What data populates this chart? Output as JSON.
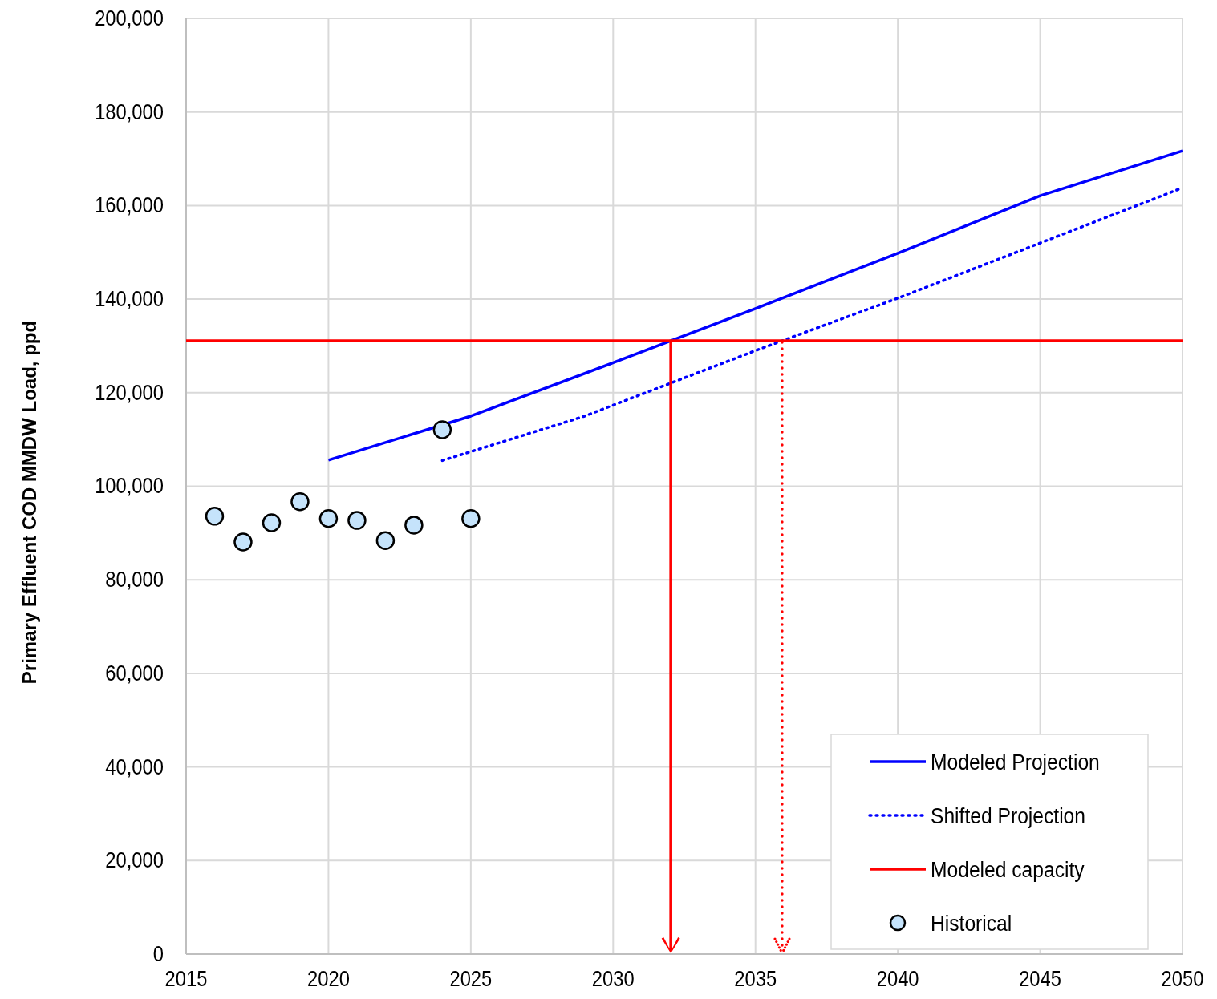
{
  "chart_data": {
    "type": "line",
    "ylabel": "Primary Effluent COD MMDW Load, ppd",
    "xlim": [
      2015,
      2050
    ],
    "xticks": [
      2015,
      2020,
      2025,
      2030,
      2035,
      2040,
      2045,
      2050
    ],
    "ylim": [
      0,
      200000
    ],
    "yticks": [
      {
        "value": 0,
        "label": "0"
      },
      {
        "value": 20000,
        "label": "20,000"
      },
      {
        "value": 40000,
        "label": "40,000"
      },
      {
        "value": 60000,
        "label": "60,000"
      },
      {
        "value": 80000,
        "label": "80,000"
      },
      {
        "value": 100000,
        "label": "100,000"
      },
      {
        "value": 120000,
        "label": "120,000"
      },
      {
        "value": 140000,
        "label": "140,000"
      },
      {
        "value": 160000,
        "label": "160,000"
      },
      {
        "value": 180000,
        "label": "180,000"
      },
      {
        "value": 200000,
        "label": "200,000"
      }
    ],
    "grid": true,
    "legend": "bottom right",
    "series": [
      {
        "name": "Modeled Projection",
        "type": "line",
        "color": "#0000ff",
        "line_style": "solid",
        "x": [
          2020,
          2025,
          2030,
          2035,
          2040,
          2045,
          2050
        ],
        "values": [
          105600,
          115000,
          126400,
          138000,
          149800,
          162100,
          171700
        ]
      },
      {
        "name": "Shifted Projection",
        "type": "line",
        "color": "#0000ff",
        "line_style": "dotted",
        "x": [
          2024,
          2029,
          2035,
          2040,
          2045,
          2050
        ],
        "values": [
          105500,
          115000,
          129000,
          140200,
          152000,
          163800
        ]
      },
      {
        "name": "Modeled capacity",
        "type": "line",
        "color": "#ff0000",
        "line_style": "solid",
        "x": [
          2015,
          2050
        ],
        "values": [
          131100,
          131100
        ]
      },
      {
        "name": "Historical",
        "type": "scatter",
        "color": "#c5e3fb",
        "marker": "circle",
        "x": [
          2016,
          2017,
          2018,
          2019,
          2020,
          2021,
          2022,
          2023,
          2024,
          2025
        ],
        "values": [
          93600,
          88100,
          92200,
          96700,
          93100,
          92700,
          88400,
          91700,
          112100,
          93100
        ]
      }
    ]
  }
}
